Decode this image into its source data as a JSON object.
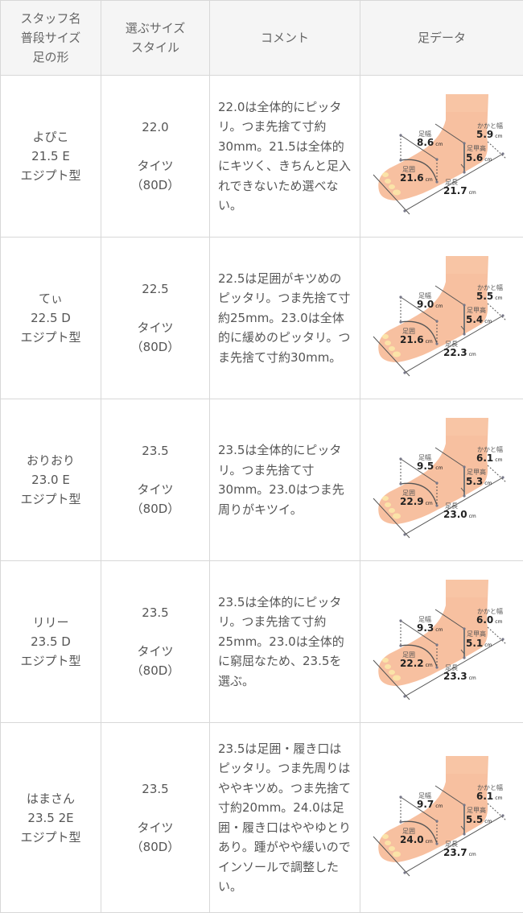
{
  "header": {
    "col1": [
      "スタッフ名",
      "普段サイズ",
      "足の形"
    ],
    "col2": [
      "選ぶサイズ",
      "スタイル"
    ],
    "col3": "コメント",
    "col4": "足データ"
  },
  "labels": {
    "width": "足幅",
    "heel": "かかと幅",
    "instep": "足甲高",
    "girth": "足囲",
    "length": "足長",
    "unit": "cm"
  },
  "rows": [
    {
      "name": "よぴこ",
      "usual": "21.5 E",
      "shape": "エジプト型",
      "size": "22.0",
      "style": "タイツ",
      "style2": "（80D）",
      "comment": "22.0は全体的にピッタリ。つま先捨て寸約30mm。21.5は全体的にキツく、きちんと足入れできないため選べない。",
      "width": "8.6",
      "heel": "5.9",
      "instep": "5.6",
      "girth": "21.6",
      "length": "21.7"
    },
    {
      "name": "てぃ",
      "usual": "22.5 D",
      "shape": "エジプト型",
      "size": "22.5",
      "style": "タイツ",
      "style2": "（80D）",
      "comment": "22.5は足囲がキツめのピッタリ。つま先捨て寸約25mm。23.0は全体的に緩めのピッタリ。つま先捨て寸約30mm。",
      "width": "9.0",
      "heel": "5.5",
      "instep": "5.4",
      "girth": "21.6",
      "length": "22.3"
    },
    {
      "name": "おりおり",
      "usual": "23.0 E",
      "shape": "エジプト型",
      "size": "23.5",
      "style": "タイツ",
      "style2": "（80D）",
      "comment": "23.5は全体的にピッタリ。つま先捨て寸30mm。23.0はつま先周りがキツイ。",
      "width": "9.5",
      "heel": "6.1",
      "instep": "5.3",
      "girth": "22.9",
      "length": "23.0"
    },
    {
      "name": "リリー",
      "usual": "23.5 D",
      "shape": "エジプト型",
      "size": "23.5",
      "style": "タイツ",
      "style2": "（80D）",
      "comment": "23.5は全体的にピッタリ。つま先捨て寸約25mm。23.0は全体的に窮屈なため、23.5を選ぶ。",
      "width": "9.3",
      "heel": "6.0",
      "instep": "5.1",
      "girth": "22.2",
      "length": "23.3"
    },
    {
      "name": "はまさん",
      "usual": "23.5 2E",
      "shape": "エジプト型",
      "size": "23.5",
      "style": "タイツ",
      "style2": "（80D）",
      "comment": "23.5は足囲・履き口はピッタリ。つま先周りはややキツめ。つま先捨て寸約20mm。24.0は足囲・履き口はややゆとりあり。踵がやや緩いのでインソールで調整したい。",
      "width": "9.7",
      "heel": "6.1",
      "instep": "5.5",
      "girth": "24.0",
      "length": "23.7"
    }
  ]
}
